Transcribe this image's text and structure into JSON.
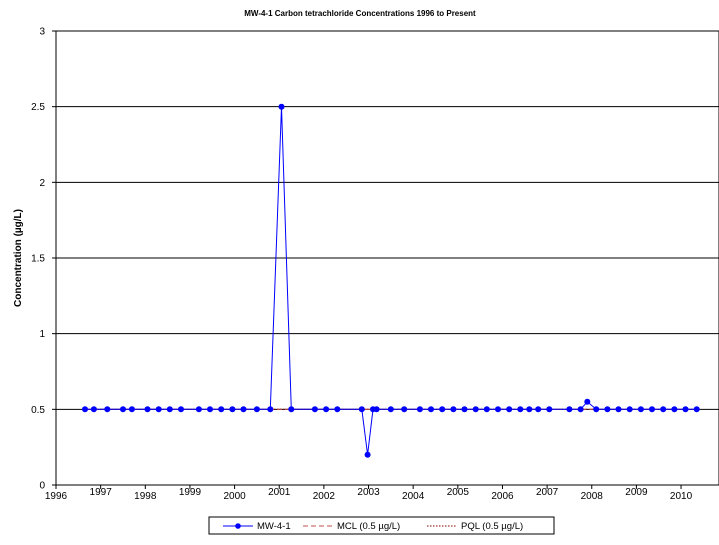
{
  "chart_data": {
    "type": "line",
    "title": "MW-4-1 Carbon tetrachloride Concentrations 1996 to Present",
    "xlabel": "",
    "ylabel": "Concentration (µg/L)",
    "xlim": [
      1996,
      2010.85
    ],
    "ylim": [
      0,
      3
    ],
    "grid": "horizontal",
    "legend_position": "bottom",
    "x_ticks_lower": [
      "1996",
      "1998",
      "2000",
      "2002",
      "2004",
      "2006",
      "2008",
      "2010"
    ],
    "x_ticks_upper": [
      "1997",
      "1999",
      "2001",
      "2003",
      "2005",
      "2007",
      "2009"
    ],
    "y_ticks": [
      "0",
      "0.5",
      "1",
      "1.5",
      "2",
      "2.5",
      "3"
    ],
    "series": [
      {
        "name": "MW-4-1",
        "color": "#0000ff",
        "style": "solid-with-markers",
        "x": [
          1996.65,
          1996.85,
          1997.15,
          1997.5,
          1997.7,
          1998.05,
          1998.3,
          1998.55,
          1998.8,
          1999.2,
          1999.45,
          1999.7,
          1999.95,
          2000.2,
          2000.5,
          2000.8,
          2001.05,
          2001.27,
          2001.8,
          2002.05,
          2002.3,
          2002.85,
          2002.98,
          2003.1,
          2003.18,
          2003.5,
          2003.8,
          2004.15,
          2004.4,
          2004.65,
          2004.9,
          2005.15,
          2005.4,
          2005.65,
          2005.9,
          2006.15,
          2006.4,
          2006.6,
          2006.8,
          2007.05,
          2007.5,
          2007.75,
          2007.9,
          2008.1,
          2008.35,
          2008.6,
          2008.85,
          2009.1,
          2009.35,
          2009.6,
          2009.85,
          2010.1,
          2010.35
        ],
        "y": [
          0.5,
          0.5,
          0.5,
          0.5,
          0.5,
          0.5,
          0.5,
          0.5,
          0.5,
          0.5,
          0.5,
          0.5,
          0.5,
          0.5,
          0.5,
          0.5,
          2.5,
          0.5,
          0.5,
          0.5,
          0.5,
          0.5,
          0.2,
          0.5,
          0.5,
          0.5,
          0.5,
          0.5,
          0.5,
          0.5,
          0.5,
          0.5,
          0.5,
          0.5,
          0.5,
          0.5,
          0.5,
          0.5,
          0.5,
          0.5,
          0.5,
          0.5,
          0.55,
          0.5,
          0.5,
          0.5,
          0.5,
          0.5,
          0.5,
          0.5,
          0.5,
          0.5,
          0.5
        ]
      },
      {
        "name": "MCL (0.5 µg/L)",
        "color": "#c0504d",
        "style": "dashed",
        "x": [
          1996.65,
          2010.35
        ],
        "y": [
          0.5,
          0.5
        ]
      },
      {
        "name": "PQL (0.5 µg/L)",
        "color": "#8b0000",
        "style": "dotted",
        "x": [
          1996.65,
          2010.35
        ],
        "y": [
          0.5,
          0.5
        ]
      }
    ]
  }
}
